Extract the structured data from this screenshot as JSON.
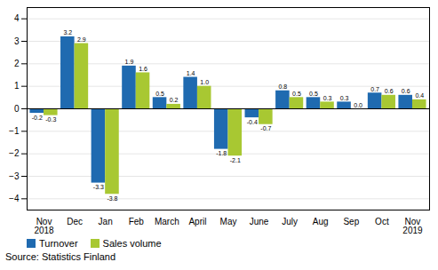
{
  "chart_data": {
    "type": "bar",
    "categories": [
      "Nov\n2018",
      "Dec",
      "Jan",
      "Feb",
      "March",
      "April",
      "May",
      "June",
      "July",
      "Aug",
      "Sep",
      "Oct",
      "Nov\n2019"
    ],
    "series": [
      {
        "name": "Turnover",
        "color": "#1f6ab0",
        "values": [
          -0.2,
          3.2,
          -3.3,
          1.9,
          0.5,
          1.4,
          -1.8,
          -0.4,
          0.8,
          0.5,
          0.3,
          0.7,
          0.6
        ]
      },
      {
        "name": "Sales volume",
        "color": "#a8c832",
        "values": [
          -0.3,
          2.9,
          -3.8,
          1.6,
          0.2,
          1.0,
          -2.1,
          -0.7,
          0.5,
          0.3,
          0.0,
          0.6,
          0.4
        ],
        "value_labels": [
          "-0.3",
          "2.9",
          "-3.8",
          "1.6",
          "0.2",
          "1.0",
          "-2.1",
          "-0.7",
          "0.5",
          "0.3",
          "0.0",
          "0.6",
          "0.4"
        ]
      }
    ],
    "ylim": [
      -4.5,
      4.5
    ],
    "yticks": [
      -4,
      -3,
      -2,
      -1,
      0,
      1,
      2,
      3,
      4
    ],
    "grid": true,
    "data_labels": true,
    "legend": "lower left",
    "caption": "Source: Statistics Finland"
  }
}
